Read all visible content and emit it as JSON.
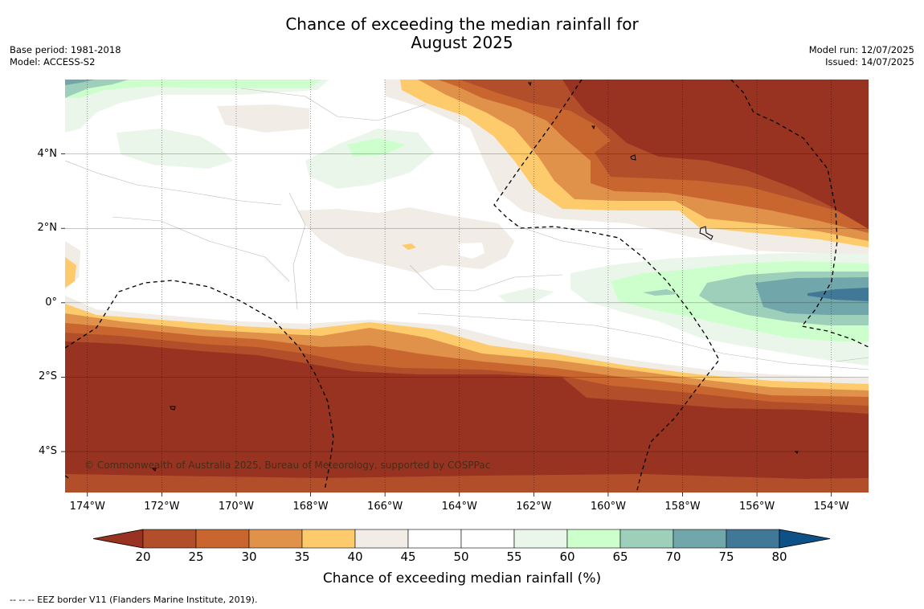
{
  "title_line1": "Chance of exceeding the median rainfall for",
  "title_line2": "August 2025",
  "base_period": "Base period: 1981-2018",
  "model": "Model: ACCESS-S2",
  "model_run": "Model run: 12/07/2025",
  "issued": "Issued: 14/07/2025",
  "copyright": "© Commonwealth of Australia 2025, Bureau of Meteorology, supported by COSPPac",
  "footnote": "--  --  -- EEZ border V11 (Flanders Marine Institute, 2019).",
  "map": {
    "lat_ticks": [
      {
        "v": 4,
        "label": "4°N"
      },
      {
        "v": 2,
        "label": "2°N"
      },
      {
        "v": 0,
        "label": "0°"
      },
      {
        "v": -2,
        "label": "2°S"
      },
      {
        "v": -4,
        "label": "4°S"
      }
    ],
    "lon_ticks": [
      {
        "v": -174,
        "label": "174°W"
      },
      {
        "v": -172,
        "label": "172°W"
      },
      {
        "v": -170,
        "label": "170°W"
      },
      {
        "v": -168,
        "label": "168°W"
      },
      {
        "v": -166,
        "label": "166°W"
      },
      {
        "v": -164,
        "label": "164°W"
      },
      {
        "v": -162,
        "label": "162°W"
      },
      {
        "v": -160,
        "label": "160°W"
      },
      {
        "v": -158,
        "label": "158°W"
      },
      {
        "v": -156,
        "label": "156°W"
      },
      {
        "v": -154,
        "label": "154°W"
      }
    ],
    "lon_range": [
      -174.6,
      -153.0
    ],
    "lat_range": [
      -5.1,
      6.0
    ],
    "colors": {
      "lt20": "#993321",
      "b20": "#b24f2a",
      "b25": "#c9662f",
      "b30": "#e0914a",
      "b35": "#fecb6c",
      "b40": "#f1ece6",
      "b45": "#ffffff",
      "b50": "#ffffff",
      "b55": "#ebf6ea",
      "b60": "#ccffcc",
      "b65": "#9ecfba",
      "b70": "#71a7aa",
      "b75": "#417897",
      "gt80": "#0e5187"
    }
  },
  "colorbar": {
    "ticks": [
      "20",
      "25",
      "30",
      "35",
      "40",
      "45",
      "50",
      "55",
      "60",
      "65",
      "70",
      "75",
      "80"
    ],
    "colors": [
      "#b24f2a",
      "#c9662f",
      "#e0914a",
      "#fecb6c",
      "#f1ece6",
      "#ffffff",
      "#ffffff",
      "#ebf6ea",
      "#ccffcc",
      "#9ecfba",
      "#71a7aa",
      "#417897"
    ],
    "under_color": "#993321",
    "over_color": "#0e5187",
    "label": "Chance of exceeding median rainfall (%)"
  }
}
